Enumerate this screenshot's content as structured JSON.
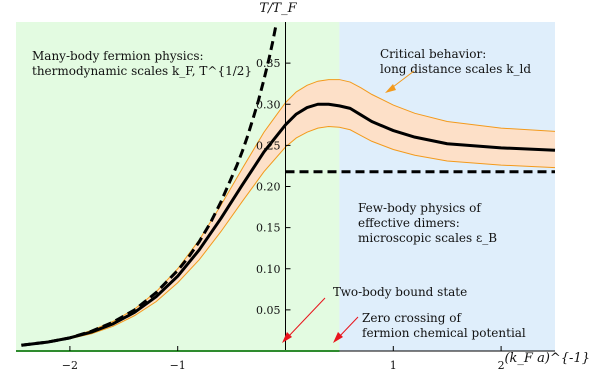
{
  "chart_data": {
    "type": "line",
    "xlabel": "(k_F a)^{-1}",
    "ylabel": "T/T_F",
    "xlim": [
      -2.5,
      2.5
    ],
    "ylim": [
      0,
      0.4
    ],
    "x_ticks": [
      {
        "value": -2,
        "label": "−2"
      },
      {
        "value": -1,
        "label": "−1"
      },
      {
        "value": 1,
        "label": "1"
      },
      {
        "value": 2,
        "label": "2"
      }
    ],
    "y_ticks": [
      {
        "value": 0.05,
        "label": "0.05"
      },
      {
        "value": 0.1,
        "label": "0.10"
      },
      {
        "value": 0.15,
        "label": "0.15"
      },
      {
        "value": 0.2,
        "label": "0.20"
      },
      {
        "value": 0.25,
        "label": "0.25"
      },
      {
        "value": 0.3,
        "label": "0.30"
      },
      {
        "value": 0.35,
        "label": "0.35"
      }
    ],
    "regions": [
      {
        "x_range": [
          -2.5,
          0.5
        ],
        "color": "#e3fbe1"
      },
      {
        "x_range": [
          0.5,
          2.5
        ],
        "color": "#dfeefb"
      }
    ],
    "series": [
      {
        "style": "solid",
        "color": "#000000",
        "points": [
          [
            -2.45,
            0.007
          ],
          [
            -2.2,
            0.011
          ],
          [
            -2.0,
            0.016
          ],
          [
            -1.8,
            0.023
          ],
          [
            -1.6,
            0.033
          ],
          [
            -1.4,
            0.047
          ],
          [
            -1.2,
            0.066
          ],
          [
            -1.0,
            0.091
          ],
          [
            -0.8,
            0.123
          ],
          [
            -0.6,
            0.161
          ],
          [
            -0.4,
            0.202
          ],
          [
            -0.2,
            0.242
          ],
          [
            0.0,
            0.275
          ],
          [
            0.1,
            0.288
          ],
          [
            0.2,
            0.296
          ],
          [
            0.3,
            0.3
          ],
          [
            0.4,
            0.3
          ],
          [
            0.5,
            0.298
          ],
          [
            0.6,
            0.295
          ],
          [
            0.7,
            0.287
          ],
          [
            0.8,
            0.279
          ],
          [
            1.0,
            0.268
          ],
          [
            1.2,
            0.26
          ],
          [
            1.5,
            0.252
          ],
          [
            2.0,
            0.247
          ],
          [
            2.5,
            0.244
          ]
        ]
      },
      {
        "style": "dashed",
        "color": "#000000",
        "points": [
          [
            -2.45,
            0.007
          ],
          [
            -2.2,
            0.011
          ],
          [
            -2.0,
            0.016
          ],
          [
            -1.8,
            0.024
          ],
          [
            -1.6,
            0.035
          ],
          [
            -1.4,
            0.05
          ],
          [
            -1.2,
            0.071
          ],
          [
            -1.0,
            0.098
          ],
          [
            -0.9,
            0.114
          ],
          [
            -0.8,
            0.133
          ],
          [
            -0.7,
            0.155
          ],
          [
            -0.6,
            0.181
          ],
          [
            -0.5,
            0.211
          ],
          [
            -0.45,
            0.226
          ],
          [
            -0.4,
            0.243
          ],
          [
            -0.35,
            0.262
          ],
          [
            -0.3,
            0.283
          ],
          [
            -0.25,
            0.305
          ],
          [
            -0.2,
            0.33
          ],
          [
            -0.15,
            0.357
          ],
          [
            -0.12,
            0.375
          ],
          [
            -0.09,
            0.395
          ]
        ]
      },
      {
        "style": "dashed",
        "color": "#000000",
        "points": [
          [
            0.0,
            0.218
          ],
          [
            2.5,
            0.218
          ]
        ]
      }
    ],
    "band": {
      "fill": "#fde0c8",
      "stroke": "#f39a1c",
      "upper": [
        [
          -2.45,
          0.007
        ],
        [
          -2.2,
          0.012
        ],
        [
          -2.0,
          0.017
        ],
        [
          -1.8,
          0.025
        ],
        [
          -1.6,
          0.036
        ],
        [
          -1.4,
          0.051
        ],
        [
          -1.2,
          0.072
        ],
        [
          -1.0,
          0.1
        ],
        [
          -0.8,
          0.135
        ],
        [
          -0.6,
          0.177
        ],
        [
          -0.4,
          0.222
        ],
        [
          -0.2,
          0.266
        ],
        [
          0.0,
          0.302
        ],
        [
          0.1,
          0.315
        ],
        [
          0.2,
          0.323
        ],
        [
          0.3,
          0.328
        ],
        [
          0.4,
          0.33
        ],
        [
          0.5,
          0.33
        ],
        [
          0.6,
          0.327
        ],
        [
          0.7,
          0.32
        ],
        [
          0.8,
          0.312
        ],
        [
          1.0,
          0.299
        ],
        [
          1.2,
          0.289
        ],
        [
          1.5,
          0.279
        ],
        [
          2.0,
          0.271
        ],
        [
          2.5,
          0.267
        ]
      ],
      "lower": [
        [
          -2.45,
          0.007
        ],
        [
          -2.2,
          0.01
        ],
        [
          -2.0,
          0.015
        ],
        [
          -1.8,
          0.021
        ],
        [
          -1.6,
          0.03
        ],
        [
          -1.4,
          0.043
        ],
        [
          -1.2,
          0.06
        ],
        [
          -1.0,
          0.083
        ],
        [
          -0.8,
          0.111
        ],
        [
          -0.6,
          0.145
        ],
        [
          -0.4,
          0.182
        ],
        [
          -0.2,
          0.218
        ],
        [
          0.0,
          0.248
        ],
        [
          0.1,
          0.259
        ],
        [
          0.2,
          0.266
        ],
        [
          0.3,
          0.271
        ],
        [
          0.4,
          0.273
        ],
        [
          0.5,
          0.272
        ],
        [
          0.6,
          0.269
        ],
        [
          0.7,
          0.262
        ],
        [
          0.8,
          0.255
        ],
        [
          1.0,
          0.245
        ],
        [
          1.2,
          0.238
        ],
        [
          1.5,
          0.231
        ],
        [
          2.0,
          0.226
        ],
        [
          2.5,
          0.223
        ]
      ]
    },
    "annotations": [
      {
        "lines": [
          "Many-body fermion physics:",
          "thermodynamic scales k_F, T^{1/2}"
        ]
      },
      {
        "lines": [
          "Critical behavior:",
          "long distance scales k_ld"
        ]
      },
      {
        "lines": [
          "Few-body physics of",
          "effective dimers:",
          "microscopic scales ε_B"
        ]
      },
      {
        "lines": [
          "Two-body bound state"
        ]
      },
      {
        "lines": [
          "Zero crossing of",
          "fermion chemical potential"
        ]
      }
    ]
  }
}
